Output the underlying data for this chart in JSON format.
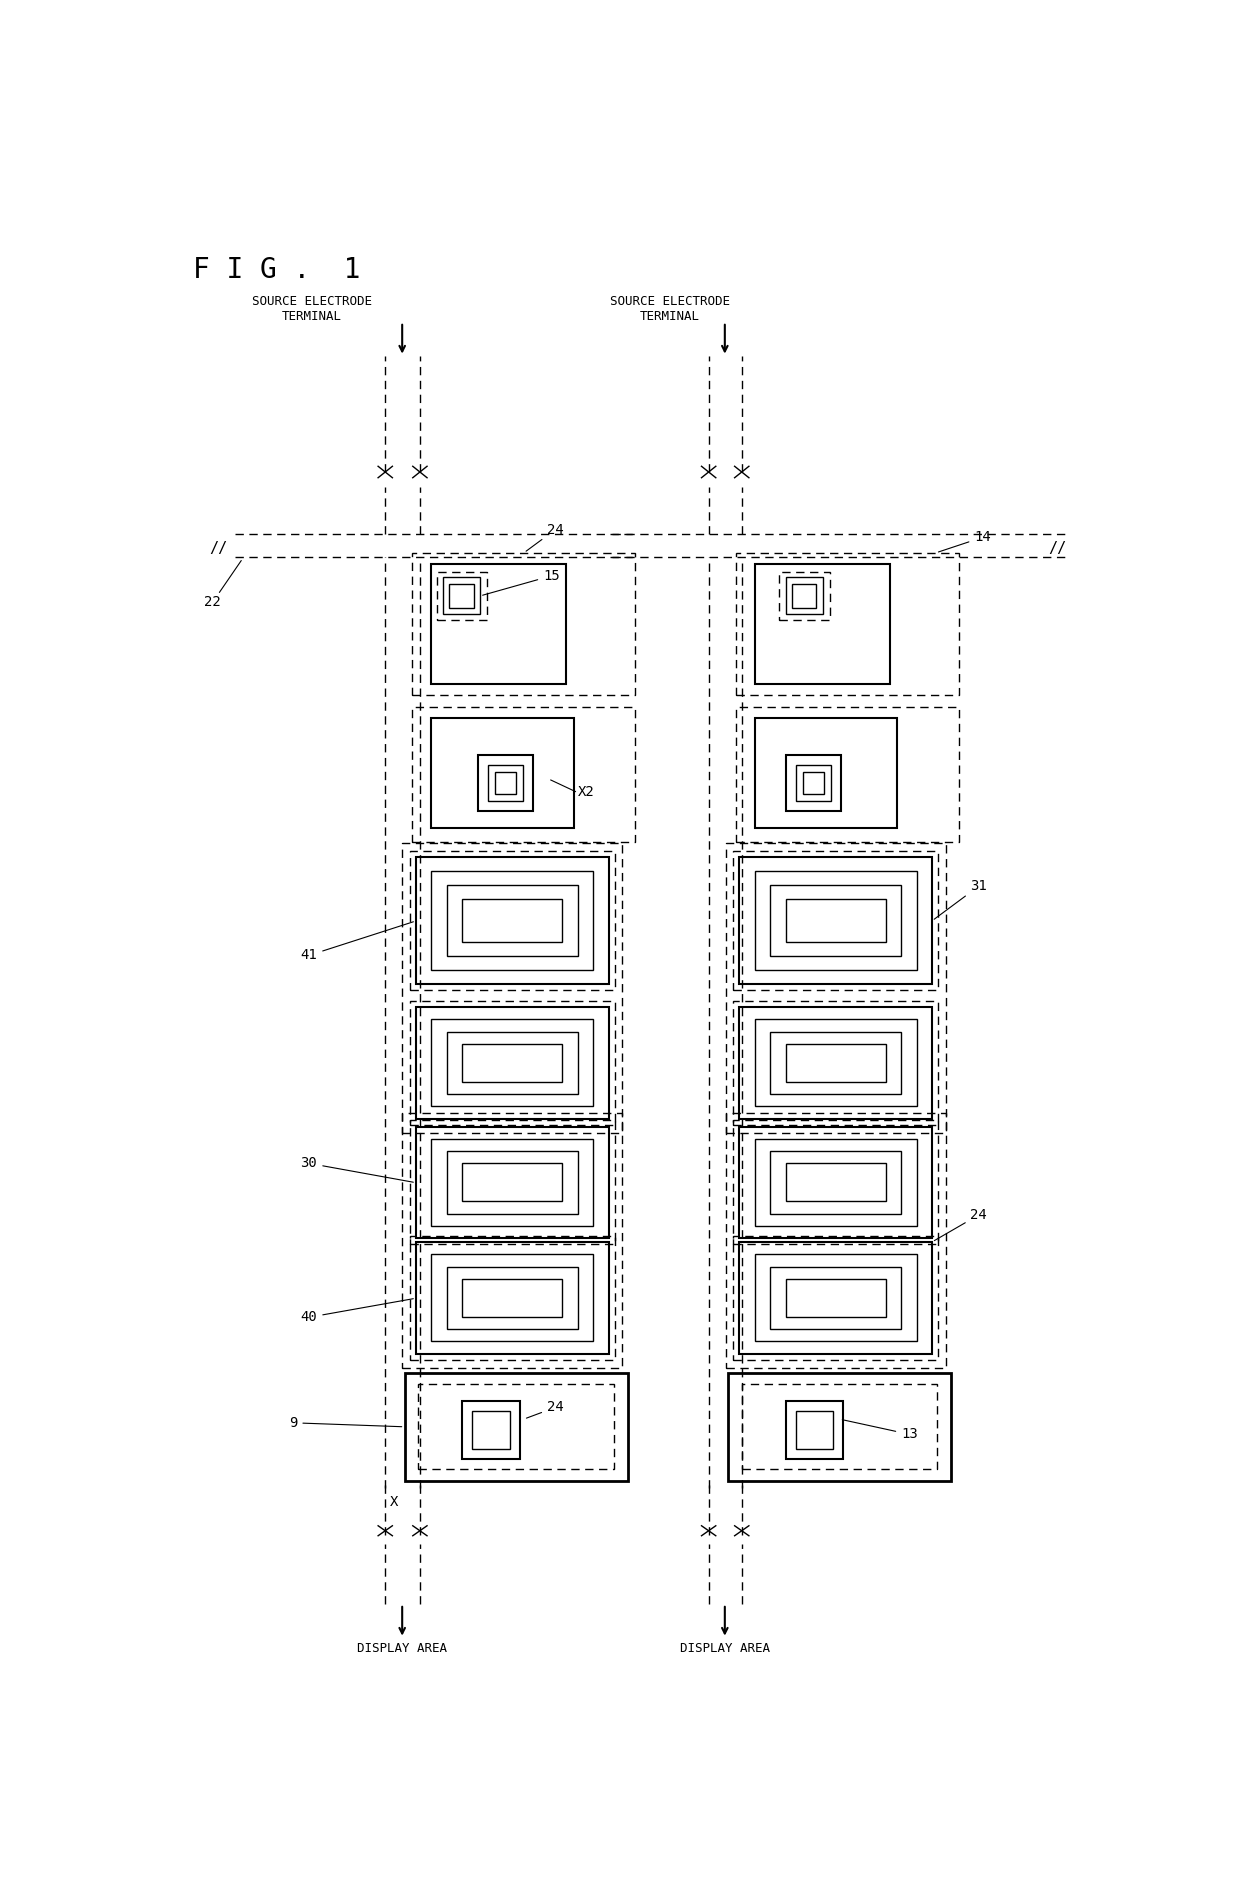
{
  "background_color": "#ffffff",
  "line_color": "#000000",
  "fig_size": [
    12.4,
    18.8
  ],
  "dpi": 100,
  "labels": {
    "fig_title": "F I G .  1",
    "source_terminal_left": "SOURCE ELECTRODE\nTERMINAL",
    "source_terminal_right": "SOURCE ELECTRODE\nTERMINAL",
    "display_area_left": "DISPLAY AREA",
    "display_area_right": "DISPLAY AREA",
    "n22": "22",
    "n41": "41",
    "n30": "30",
    "n40": "40",
    "n9": "9",
    "nX": "X",
    "nX2": "X2",
    "n24a": "24",
    "n15": "15",
    "n24b": "24",
    "n14": "14",
    "n31": "31",
    "n24c": "24",
    "n13": "13"
  }
}
